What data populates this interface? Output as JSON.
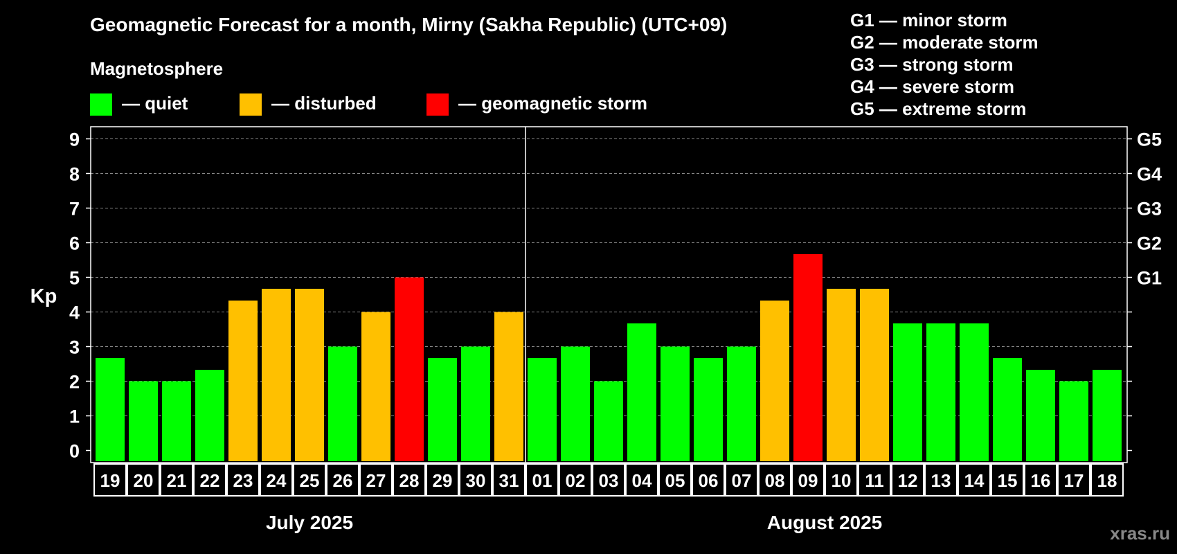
{
  "title": "Geomagnetic Forecast for a month, Mirny (Sakha Republic) (UTC+09)",
  "magnetosphere_label": "Magnetosphere",
  "legend": [
    {
      "label": "— quiet",
      "color": "#00ff00"
    },
    {
      "label": "— disturbed",
      "color": "#ffc000"
    },
    {
      "label": "— geomagnetic storm",
      "color": "#ff0000"
    }
  ],
  "g_legend": [
    "G1 — minor storm",
    "G2 — moderate storm",
    "G3 — strong storm",
    "G4 — severe storm",
    "G5 — extreme storm"
  ],
  "watermark": "xras.ru",
  "chart_data": {
    "type": "bar",
    "ylabel": "Kp",
    "ylim": [
      0,
      9
    ],
    "yticks": [
      "0",
      "1",
      "2",
      "3",
      "4",
      "5",
      "6",
      "7",
      "8",
      "9"
    ],
    "right_ticks": [
      {
        "value": 5,
        "label": "G1"
      },
      {
        "value": 6,
        "label": "G2"
      },
      {
        "value": 7,
        "label": "G3"
      },
      {
        "value": 8,
        "label": "G4"
      },
      {
        "value": 9,
        "label": "G5"
      }
    ],
    "grid": true,
    "months": [
      {
        "label": "July 2025",
        "count": 13
      },
      {
        "label": "August 2025",
        "count": 18
      }
    ],
    "categories": [
      "19",
      "20",
      "21",
      "22",
      "23",
      "24",
      "25",
      "26",
      "27",
      "28",
      "29",
      "30",
      "31",
      "01",
      "02",
      "03",
      "04",
      "05",
      "06",
      "07",
      "08",
      "09",
      "10",
      "11",
      "12",
      "13",
      "14",
      "15",
      "16",
      "17",
      "18"
    ],
    "values": [
      2.67,
      2.0,
      2.0,
      2.33,
      4.33,
      4.67,
      4.67,
      3.0,
      4.0,
      5.0,
      2.67,
      3.0,
      4.0,
      2.67,
      3.0,
      2.0,
      3.67,
      3.0,
      2.67,
      3.0,
      4.33,
      5.67,
      4.67,
      4.67,
      3.67,
      3.67,
      3.67,
      2.67,
      2.33,
      2.0,
      2.33
    ],
    "status": [
      "quiet",
      "quiet",
      "quiet",
      "quiet",
      "disturbed",
      "disturbed",
      "disturbed",
      "quiet",
      "disturbed",
      "storm",
      "quiet",
      "quiet",
      "disturbed",
      "quiet",
      "quiet",
      "quiet",
      "quiet",
      "quiet",
      "quiet",
      "quiet",
      "disturbed",
      "storm",
      "disturbed",
      "disturbed",
      "quiet",
      "quiet",
      "quiet",
      "quiet",
      "quiet",
      "quiet",
      "quiet"
    ],
    "colors": {
      "quiet": "#00ff00",
      "disturbed": "#ffc000",
      "storm": "#ff0000"
    }
  }
}
